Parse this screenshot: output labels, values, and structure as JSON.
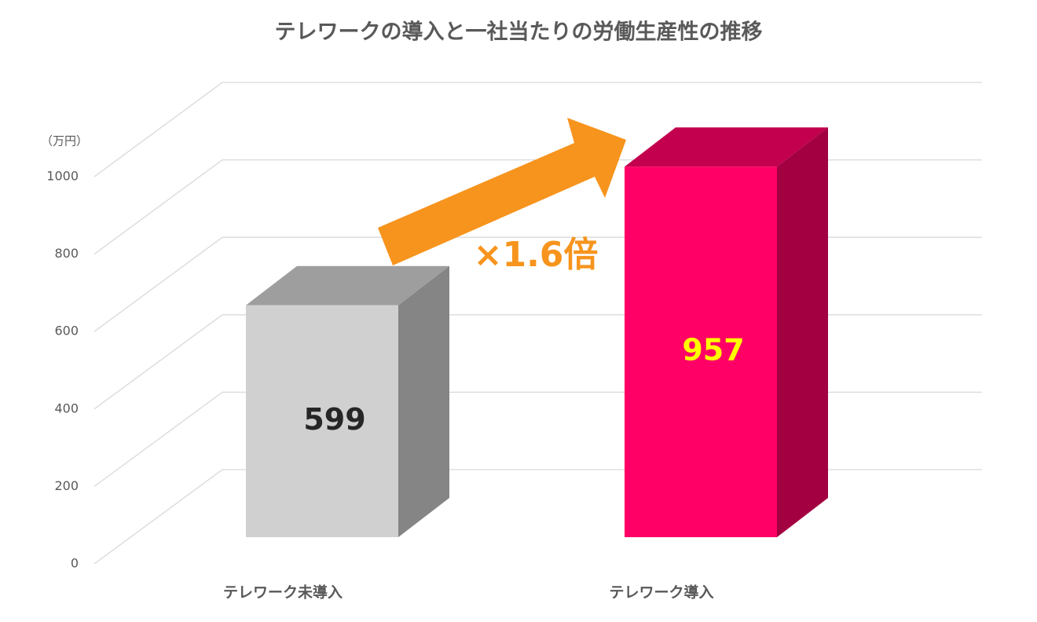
{
  "chart_data": {
    "type": "bar3d",
    "title": "テレワークの導入と一社当たりの労働生産性の推移",
    "y_unit": "（万円）",
    "categories": [
      "テレワーク未導入",
      "テレワーク導入"
    ],
    "values": [
      599,
      957
    ],
    "colors": [
      "#d1d0d1",
      "#ff0066"
    ],
    "label_colors": [
      "#262626",
      "#ffff00"
    ],
    "ylim": [
      0,
      1000
    ],
    "yticks": [
      0,
      200,
      400,
      600,
      800,
      1000
    ],
    "grid": true,
    "annotation": "×1.6倍"
  }
}
